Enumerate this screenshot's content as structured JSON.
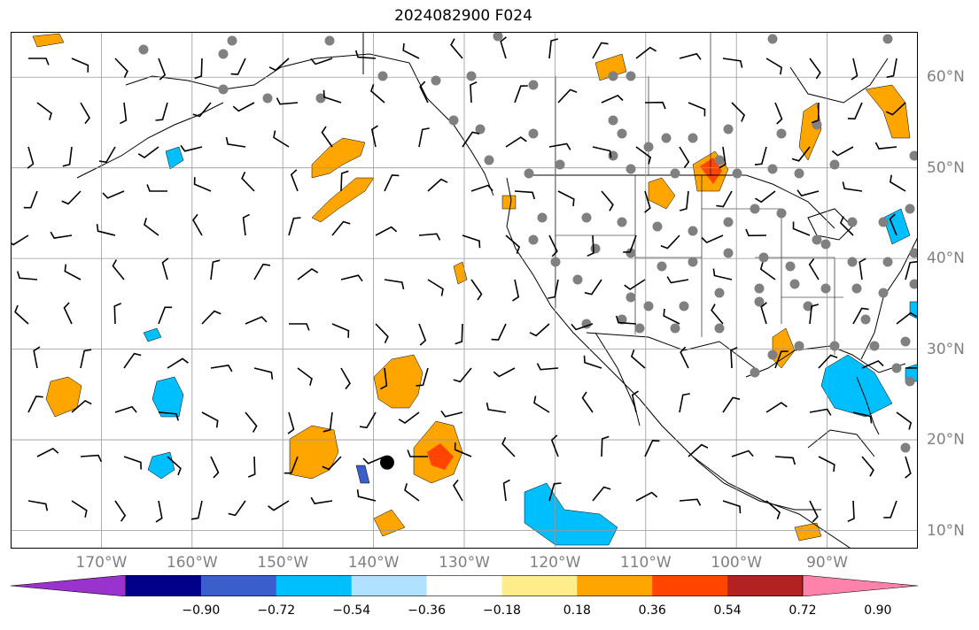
{
  "title": "2024082900 F024",
  "lat_labels": [
    "60°N",
    "50°N",
    "40°N",
    "30°N",
    "20°N",
    "10°N"
  ],
  "lon_labels": [
    "170°W",
    "160°W",
    "150°W",
    "140°W",
    "130°W",
    "120°W",
    "110°W",
    "100°W",
    "90°W"
  ],
  "map": {
    "lon_range": [
      -180,
      -80
    ],
    "lat_range": [
      8,
      65
    ],
    "gridlines": true,
    "grid_lons": [
      -170,
      -160,
      -150,
      -140,
      -130,
      -120,
      -110,
      -100,
      -90
    ],
    "grid_lats": [
      60,
      50,
      40,
      30,
      20,
      10
    ],
    "storm_marker": {
      "lon": -138.5,
      "lat": 17.5
    }
  },
  "colorbar": {
    "ticks": [
      "−0.90",
      "−0.72",
      "−0.54",
      "−0.36",
      "−0.18",
      "0.18",
      "0.36",
      "0.54",
      "0.72",
      "0.90"
    ],
    "colors": [
      "#9a32cd",
      "#00008b",
      "#3a5fcd",
      "#00bfff",
      "#b0e2ff",
      "#ffffff",
      "#ffec8b",
      "#ffa500",
      "#ff4500",
      "#b22222",
      "#ff82ab"
    ]
  },
  "colors": {
    "land_outline": "#000000",
    "grid": "#999999",
    "station_dot": "#808080",
    "label": "#808080"
  }
}
